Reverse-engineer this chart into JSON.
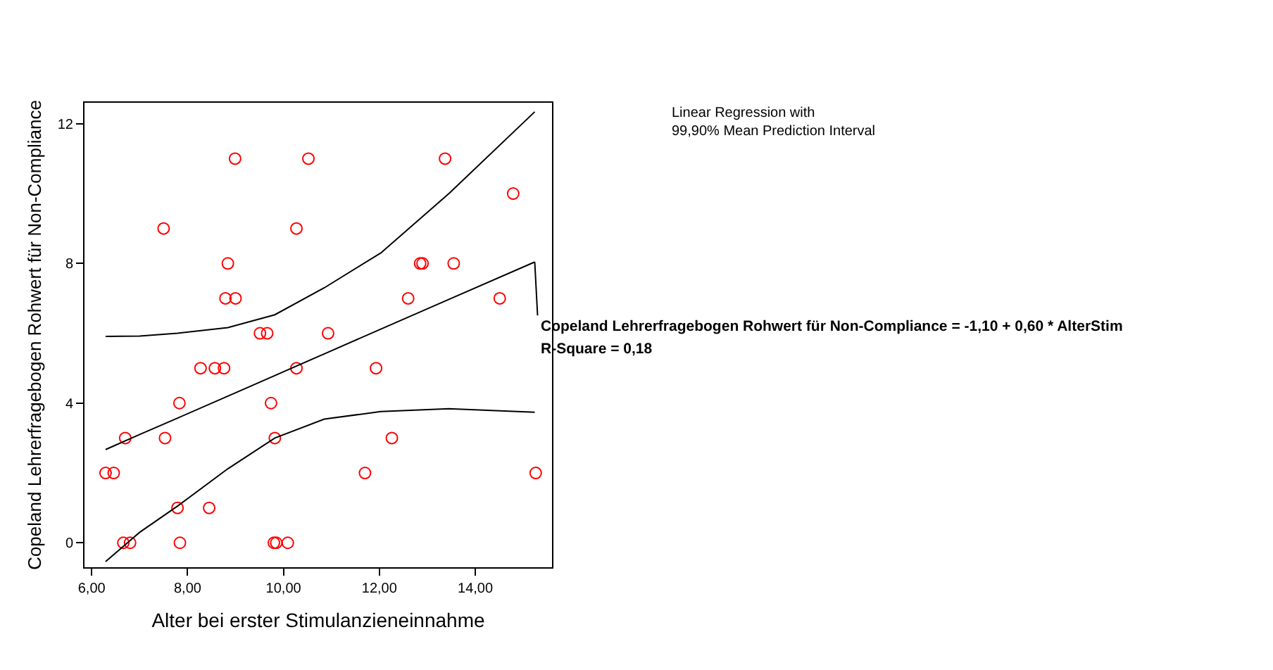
{
  "chart_data": {
    "type": "scatter",
    "xlabel": "Alter bei erster Stimulanzieneinnahme",
    "ylabel": "Copeland Lehrerfragebogen Rohwert für Non-Compliance",
    "xlim": [
      5.85,
      15.6
    ],
    "ylim": [
      -0.7,
      12.6
    ],
    "xticks": [
      {
        "value": 6,
        "label": "6,00"
      },
      {
        "value": 8,
        "label": "8,00"
      },
      {
        "value": 10,
        "label": "10,00"
      },
      {
        "value": 12,
        "label": "12,00"
      },
      {
        "value": 14,
        "label": "14,00"
      }
    ],
    "yticks": [
      0,
      4,
      8,
      12
    ],
    "series": [
      {
        "color": "#ff0000",
        "marker": "circle",
        "x": [
          8.99,
          10.52,
          7.5,
          10.27,
          8.84,
          8.79,
          9.0,
          9.51,
          9.66,
          10.93,
          8.27,
          8.57,
          8.76,
          10.27,
          7.83,
          9.74,
          6.7,
          7.53,
          9.82,
          6.29,
          6.46,
          7.79,
          8.45,
          6.66,
          6.8,
          7.84,
          9.8,
          9.85,
          10.09,
          13.37,
          14.79,
          12.85,
          12.9,
          13.55,
          12.6,
          14.51,
          11.93,
          12.26,
          11.7,
          15.26
        ],
        "values": [
          11,
          11,
          9,
          9,
          8,
          7,
          7,
          6,
          6,
          6,
          5,
          5,
          5,
          5,
          4,
          4,
          3,
          3,
          3,
          2,
          2,
          1,
          1,
          0,
          0,
          0,
          0,
          0,
          0,
          11,
          10,
          8,
          8,
          8,
          7,
          7,
          5,
          3,
          2,
          2
        ]
      },
      {
        "type": "line",
        "color": "#000000",
        "line_style": "solid",
        "marker": "none",
        "x": [
          6.29,
          7.0,
          7.79,
          8.84,
          9.82,
          10.85,
          12.03,
          13.45,
          15.24
        ],
        "values": [
          2.67,
          3.1,
          3.57,
          4.2,
          4.79,
          5.41,
          6.12,
          6.97,
          8.04
        ]
      },
      {
        "type": "line",
        "color": "#000000",
        "line_style": "solid",
        "marker": "none",
        "x": [
          6.29,
          7.0,
          7.79,
          8.84,
          9.82,
          10.85,
          12.03,
          13.45,
          15.24
        ],
        "values": [
          -0.54,
          0.3,
          1.05,
          2.12,
          3.0,
          3.54,
          3.76,
          3.84,
          3.74
        ]
      },
      {
        "type": "line",
        "color": "#000000",
        "line_style": "solid",
        "marker": "none",
        "x": [
          6.29,
          7.0,
          7.79,
          8.84,
          9.82,
          10.85,
          12.03,
          13.45,
          15.24
        ],
        "values": [
          5.91,
          5.92,
          6.0,
          6.16,
          6.53,
          7.3,
          8.3,
          10.0,
          12.34
        ]
      }
    ],
    "annotations": [
      "Linear Regression with\n99,90% Mean Prediction Interval",
      {
        "text": "Copeland Lehrerfragebogen Rohwert für Non-Compliance = -1,10 + 0,60 * AlterStim",
        "x": 15.24,
        "y": 8.04
      },
      "R-Square = 0,18"
    ]
  }
}
